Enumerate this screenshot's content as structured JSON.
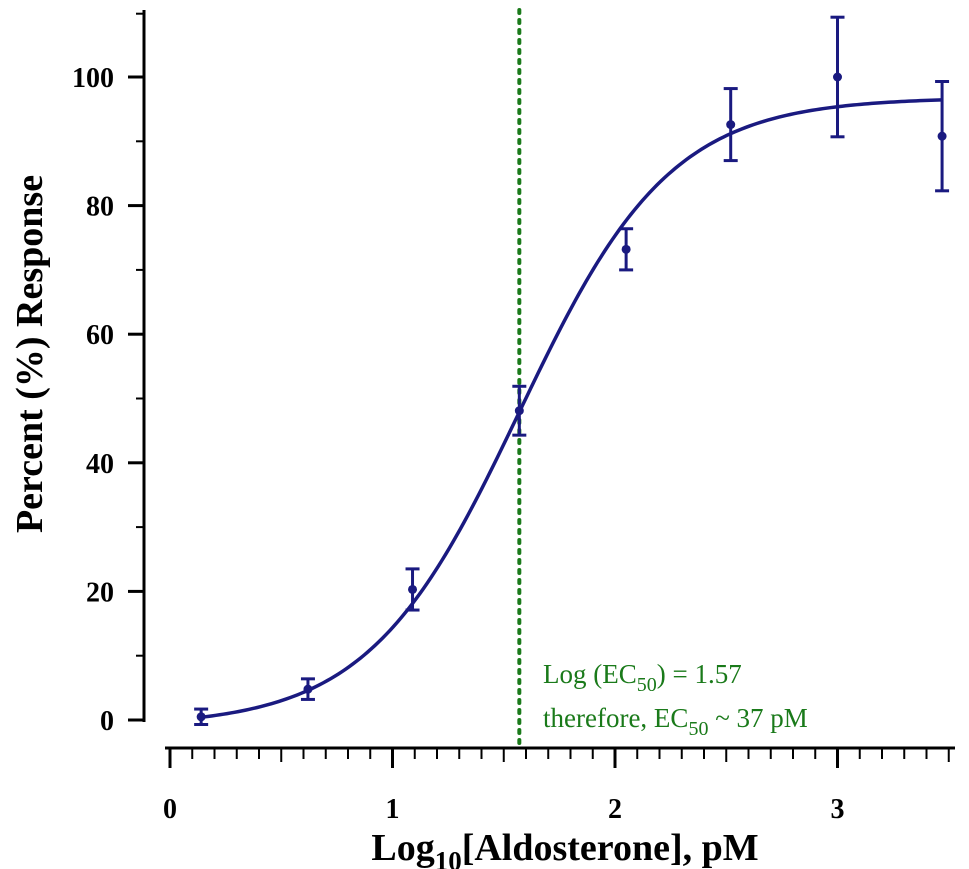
{
  "chart_data": {
    "type": "scatter",
    "xlabel": {
      "pre": "Log",
      "sub": "10",
      "post": "[Aldosterone], pM"
    },
    "ylabel": "Percent (%) Response",
    "xlim": [
      -0.05,
      3.55
    ],
    "ylim": [
      -3,
      110
    ],
    "x_ticks": [
      0,
      1,
      2,
      3
    ],
    "x_tick_labels": [
      "0",
      "1",
      "2",
      "3"
    ],
    "x_minor_step": 0.1,
    "y_ticks": [
      0,
      20,
      40,
      60,
      80,
      100
    ],
    "y_tick_labels": [
      "0",
      "20",
      "40",
      "60",
      "80",
      "100"
    ],
    "series": [
      {
        "x": [
          0.14,
          0.62,
          1.09,
          1.57,
          2.05,
          2.52,
          3.0,
          3.47
        ],
        "y": [
          0.5,
          4.8,
          20.3,
          48.1,
          73.2,
          92.6,
          100.0,
          90.8
        ],
        "error": [
          1.2,
          1.6,
          3.2,
          3.8,
          3.2,
          5.6,
          9.3,
          8.5
        ],
        "color": "#1a1a80"
      }
    ],
    "fit": {
      "model": "sigmoid",
      "bottom": -1.0,
      "top": 96.8,
      "log_ec50": 1.57,
      "hill_slope": 1.28,
      "x_range": [
        0.14,
        3.47
      ],
      "color": "#1a1a80"
    },
    "ec50_line": {
      "x": 1.57,
      "color": "#1a7a1a"
    },
    "annotations": [
      {
        "pre": "Log (EC",
        "sub": "50",
        "post": ") = 1.57"
      },
      {
        "pre": "therefore, EC",
        "sub": "50",
        "post": " ~ 37 pM"
      }
    ]
  }
}
